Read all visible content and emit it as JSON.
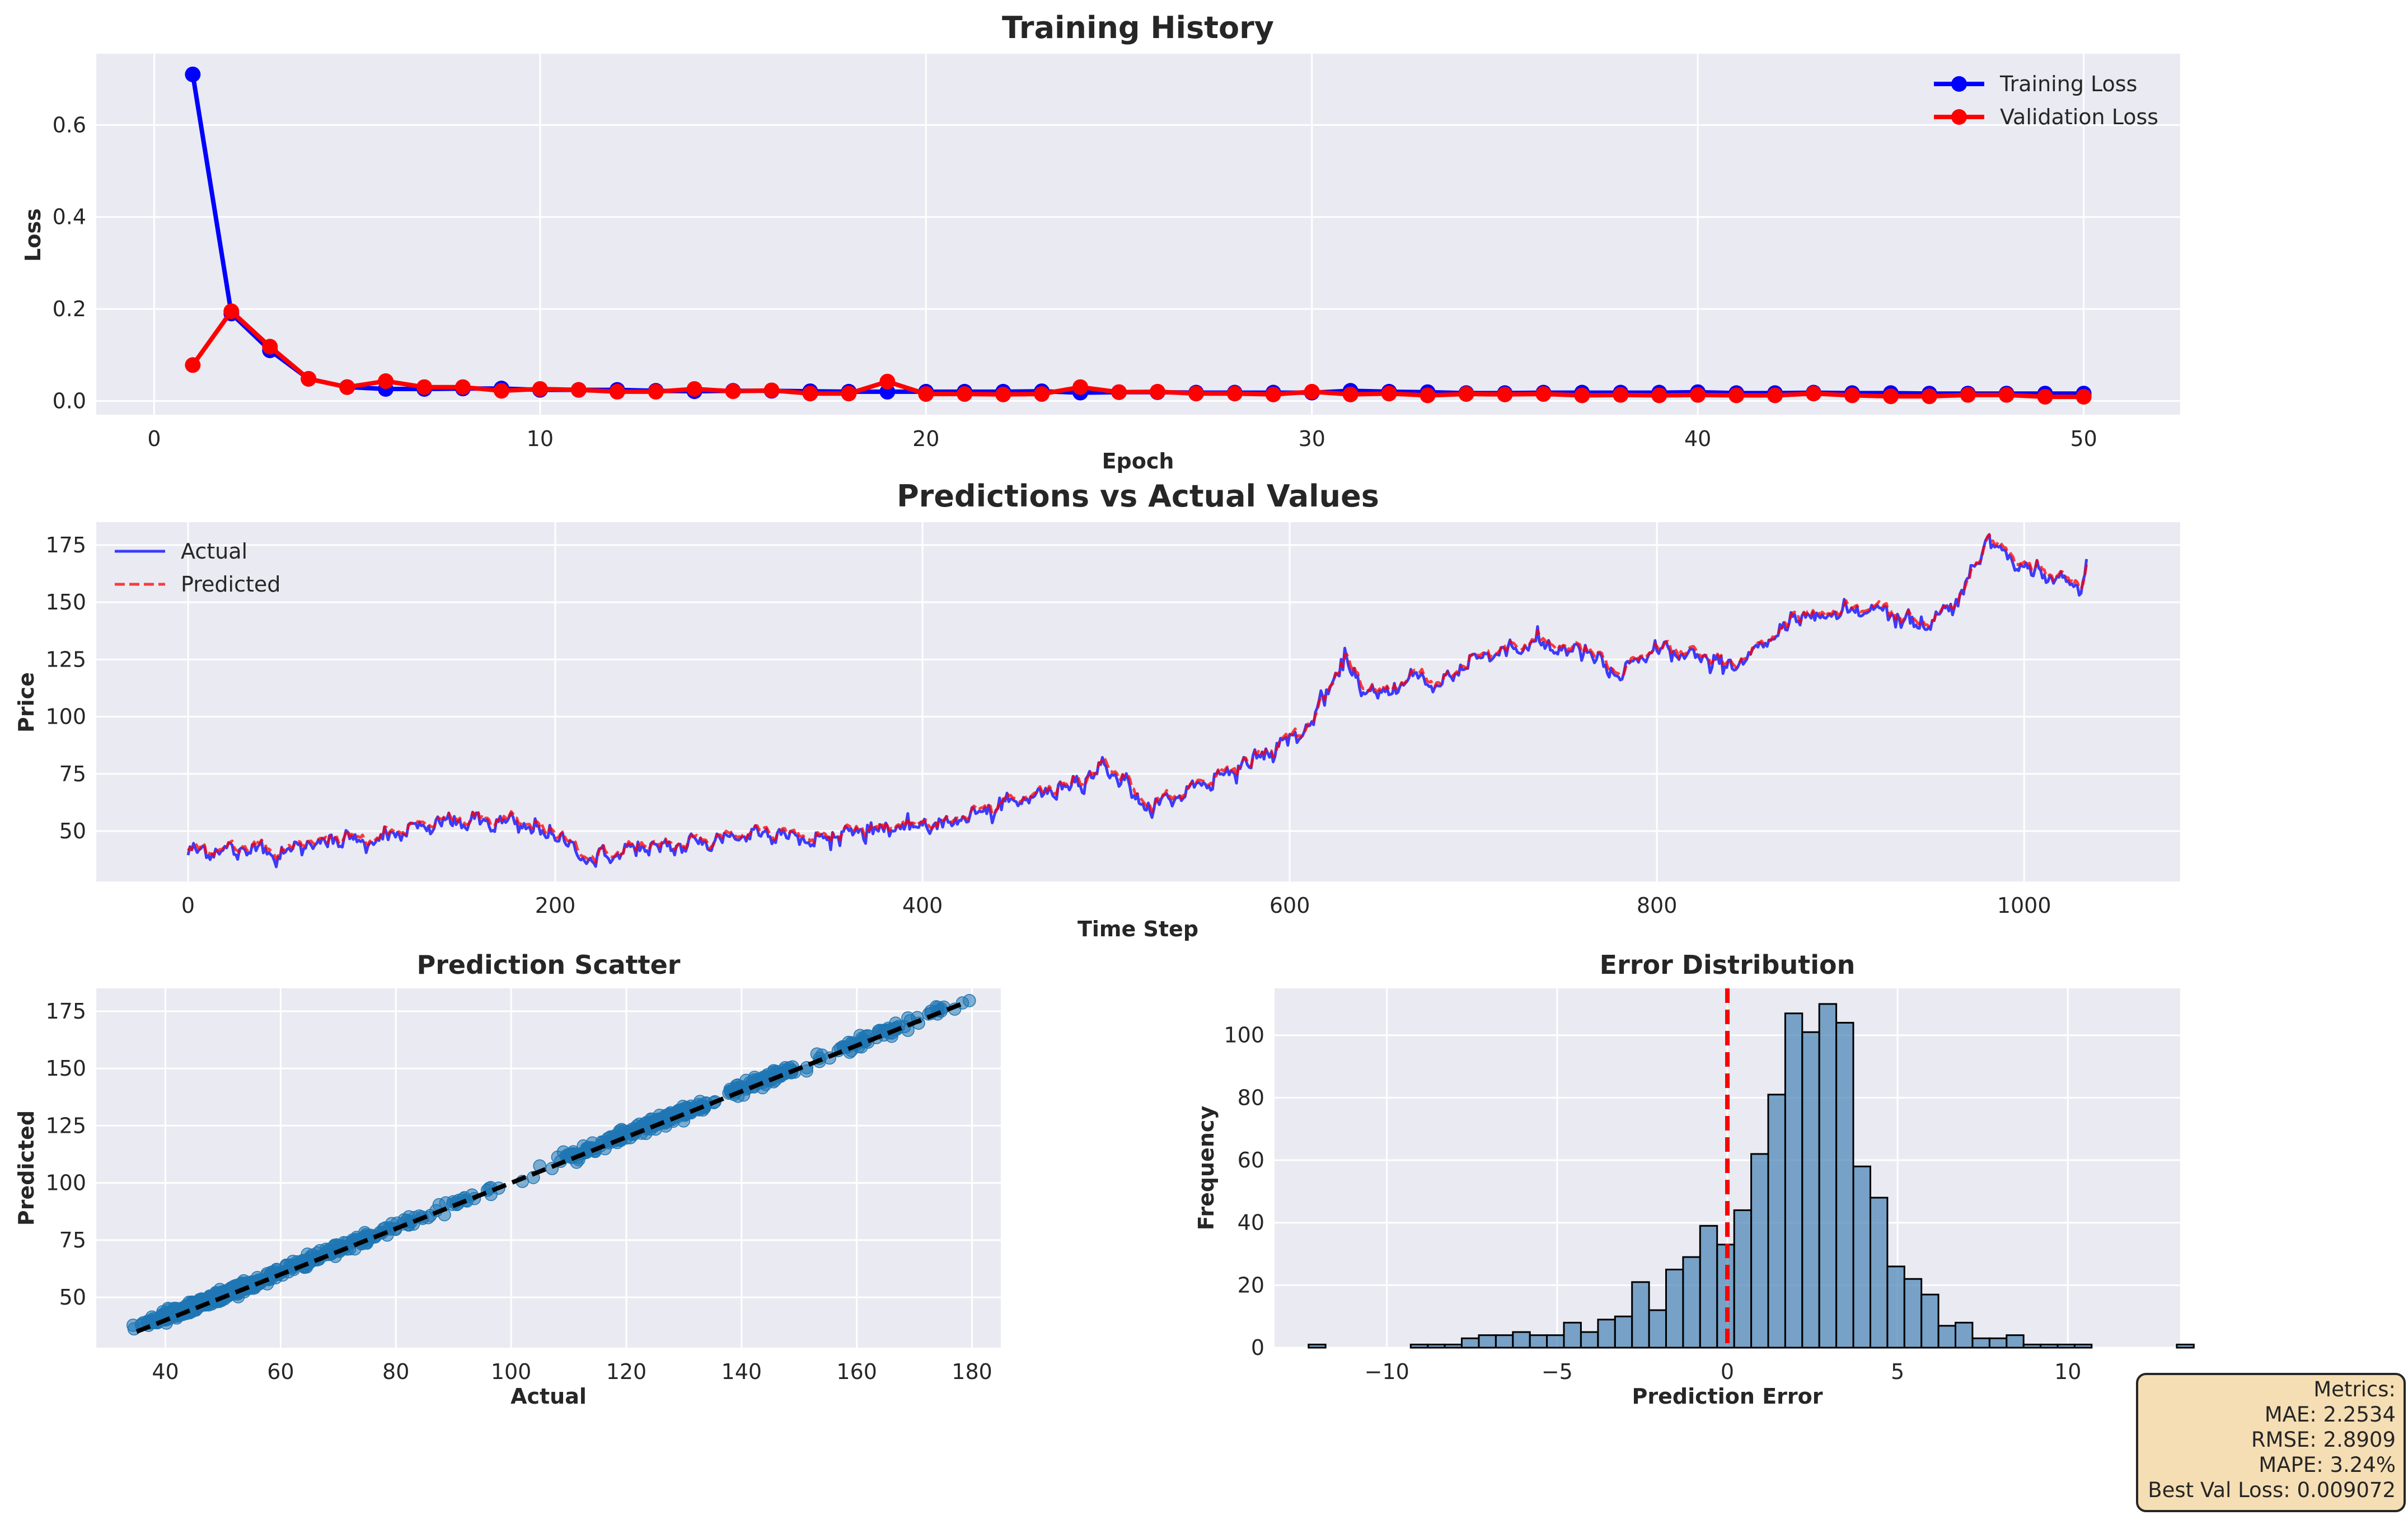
{
  "chart_data": [
    {
      "type": "line",
      "title": "Training History",
      "xlabel": "Epoch",
      "ylabel": "Loss",
      "xlim": [
        -1.5,
        52.5
      ],
      "ylim": [
        -0.03,
        0.755
      ],
      "xticks": [
        0,
        10,
        20,
        30,
        40,
        50
      ],
      "yticks": [
        0.0,
        0.2,
        0.4,
        0.6
      ],
      "grid": true,
      "legend": "top-right",
      "x": [
        1,
        2,
        3,
        4,
        5,
        6,
        7,
        8,
        9,
        10,
        11,
        12,
        13,
        14,
        15,
        16,
        17,
        18,
        19,
        20,
        21,
        22,
        23,
        24,
        25,
        26,
        27,
        28,
        29,
        30,
        31,
        32,
        33,
        34,
        35,
        36,
        37,
        38,
        39,
        40,
        41,
        42,
        43,
        44,
        45,
        46,
        47,
        48,
        49,
        50
      ],
      "series": [
        {
          "name": "Training Loss",
          "color": "#0000ff",
          "values": [
            0.71,
            0.19,
            0.11,
            0.048,
            0.03,
            0.026,
            0.026,
            0.027,
            0.027,
            0.024,
            0.024,
            0.024,
            0.022,
            0.021,
            0.022,
            0.022,
            0.021,
            0.02,
            0.02,
            0.02,
            0.02,
            0.02,
            0.021,
            0.018,
            0.019,
            0.019,
            0.018,
            0.018,
            0.018,
            0.018,
            0.022,
            0.02,
            0.019,
            0.017,
            0.017,
            0.018,
            0.018,
            0.018,
            0.018,
            0.019,
            0.017,
            0.017,
            0.018,
            0.017,
            0.017,
            0.016,
            0.016,
            0.016,
            0.016,
            0.016
          ]
        },
        {
          "name": "Validation Loss",
          "color": "#ff0000",
          "values": [
            0.078,
            0.195,
            0.118,
            0.048,
            0.03,
            0.043,
            0.03,
            0.03,
            0.022,
            0.026,
            0.024,
            0.02,
            0.02,
            0.026,
            0.021,
            0.023,
            0.016,
            0.016,
            0.042,
            0.015,
            0.015,
            0.014,
            0.015,
            0.03,
            0.019,
            0.02,
            0.016,
            0.016,
            0.014,
            0.02,
            0.014,
            0.016,
            0.012,
            0.015,
            0.014,
            0.015,
            0.012,
            0.013,
            0.012,
            0.013,
            0.012,
            0.012,
            0.016,
            0.012,
            0.01,
            0.01,
            0.013,
            0.013,
            0.009,
            0.009
          ]
        }
      ]
    },
    {
      "type": "line",
      "title": "Predictions vs Actual Values",
      "xlabel": "Time Step",
      "ylabel": "Price",
      "xlim": [
        -50,
        1085
      ],
      "ylim": [
        28,
        185
      ],
      "xticks": [
        0,
        200,
        400,
        600,
        800,
        1000
      ],
      "yticks": [
        50,
        75,
        100,
        125,
        150,
        175
      ],
      "grid": true,
      "legend": "top-left",
      "n_points": 1035,
      "series": [
        {
          "name": "Actual",
          "color": "#0000ff",
          "style": "solid"
        },
        {
          "name": "Predicted",
          "color": "#ff0000",
          "style": "dashed"
        }
      ],
      "anchors": {
        "x": [
          0,
          10,
          30,
          40,
          50,
          60,
          80,
          100,
          120,
          140,
          160,
          180,
          200,
          220,
          240,
          260,
          280,
          300,
          320,
          340,
          360,
          380,
          400,
          420,
          440,
          460,
          480,
          500,
          510,
          520,
          530,
          550,
          570,
          590,
          610,
          620,
          630,
          640,
          650,
          660,
          670,
          680,
          690,
          700,
          720,
          740,
          750,
          760,
          770,
          780,
          800,
          820,
          840,
          860,
          880,
          900,
          920,
          940,
          950,
          960,
          970,
          980,
          1000,
          1020,
          1030,
          1035
        ],
        "values": [
          40,
          42,
          41,
          44,
          38,
          44,
          46,
          46,
          50,
          54,
          54,
          53,
          48,
          37,
          42,
          43,
          45,
          48,
          50,
          45,
          50,
          51,
          52,
          55,
          60,
          65,
          70,
          78,
          72,
          60,
          62,
          70,
          77,
          85,
          95,
          110,
          125,
          112,
          108,
          115,
          118,
          112,
          120,
          125,
          130,
          132,
          128,
          130,
          122,
          118,
          130,
          126,
          122,
          132,
          145,
          145,
          148,
          140,
          142,
          148,
          160,
          178,
          165,
          160,
          155,
          172
        ]
      }
    },
    {
      "type": "scatter",
      "title": "Prediction Scatter",
      "xlabel": "Actual",
      "ylabel": "Predicted",
      "xlim": [
        28,
        185
      ],
      "ylim": [
        28,
        185
      ],
      "xticks": [
        40,
        60,
        80,
        100,
        120,
        140,
        160,
        180
      ],
      "yticks": [
        50,
        75,
        100,
        125,
        150,
        175
      ],
      "grid": true,
      "point_color": "#1f77b4",
      "reference_line": {
        "from": [
          35,
          35
        ],
        "to": [
          178,
          178
        ],
        "color": "#000000",
        "style": "dashed"
      }
    },
    {
      "type": "histogram",
      "title": "Error Distribution",
      "xlabel": "Prediction Error",
      "ylabel": "Frequency",
      "xlim": [
        -13.3,
        13.3
      ],
      "ylim": [
        0,
        115
      ],
      "xticks": [
        -10,
        -5,
        0,
        5,
        10
      ],
      "yticks": [
        0,
        20,
        40,
        60,
        80,
        100
      ],
      "grid": true,
      "bar_color": "#4682b4",
      "bin_start": -12.3,
      "bin_width": 0.5,
      "counts": [
        1,
        0,
        0,
        0,
        0,
        0,
        1,
        1,
        1,
        3,
        4,
        4,
        5,
        4,
        4,
        8,
        5,
        9,
        10,
        21,
        12,
        25,
        29,
        39,
        33,
        44,
        62,
        81,
        107,
        101,
        110,
        104,
        58,
        48,
        26,
        22,
        17,
        7,
        8,
        3,
        3,
        4,
        1,
        1,
        1,
        1,
        0,
        0,
        0,
        0,
        0,
        1
      ],
      "vline": {
        "x": 0,
        "color": "#ff0000",
        "style": "dashed"
      }
    }
  ],
  "metrics": {
    "header": "Metrics:",
    "lines": [
      "MAE: 2.2534",
      "RMSE: 2.8909",
      "MAPE: 3.24%",
      "Best Val Loss: 0.009072"
    ]
  }
}
